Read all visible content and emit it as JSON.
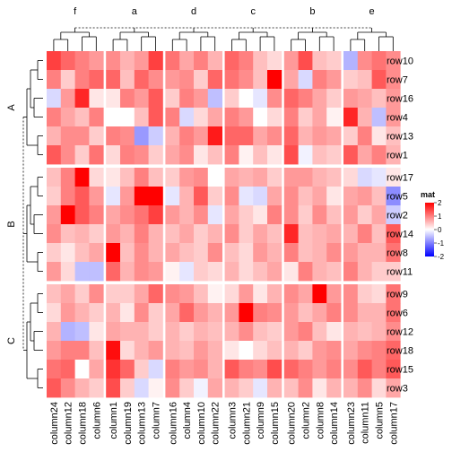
{
  "chart_data": {
    "type": "heatmap",
    "column_groups": [
      {
        "title": "f",
        "columns": [
          "column24",
          "column12",
          "column18",
          "column6"
        ]
      },
      {
        "title": "a",
        "columns": [
          "column1",
          "column19",
          "column13",
          "column7"
        ]
      },
      {
        "title": "d",
        "columns": [
          "column16",
          "column4",
          "column10",
          "column22"
        ]
      },
      {
        "title": "c",
        "columns": [
          "column3",
          "column21",
          "column9",
          "column15"
        ]
      },
      {
        "title": "b",
        "columns": [
          "column20",
          "column2",
          "column8",
          "column14"
        ]
      },
      {
        "title": "e",
        "columns": [
          "column23",
          "column11",
          "column5",
          "column17"
        ]
      }
    ],
    "row_groups": [
      {
        "title": "A",
        "rows": [
          "row10",
          "row7",
          "row16",
          "row4",
          "row13",
          "row1"
        ]
      },
      {
        "title": "B",
        "rows": [
          "row17",
          "row5",
          "row2",
          "row14",
          "row8",
          "row11"
        ]
      },
      {
        "title": "C",
        "rows": [
          "row9",
          "row6",
          "row12",
          "row18",
          "row15",
          "row3"
        ]
      }
    ],
    "values": [
      [
        1.5,
        1.2,
        1.0,
        0.8,
        0.9,
        0.6,
        0.8,
        1.5,
        1.1,
        0.7,
        1.0,
        0.6,
        1.2,
        1.0,
        0.5,
        0.3,
        0.8,
        1.4,
        0.5,
        0.4,
        -0.6,
        0.9,
        1.1,
        0.9
      ],
      [
        1.0,
        0.4,
        1.0,
        1.2,
        1.2,
        0.5,
        1.2,
        0.9,
        0.8,
        0.9,
        0.4,
        1.2,
        1.1,
        0.9,
        0.5,
        2.2,
        0.7,
        -0.3,
        1.0,
        0.8,
        0.4,
        0.5,
        1.3,
        0.9
      ],
      [
        -0.3,
        0.8,
        1.7,
        0.2,
        0.2,
        1.0,
        0.8,
        1.3,
        0.4,
        1.0,
        0.8,
        -0.5,
        0.4,
        0.0,
        -0.2,
        0.9,
        1.2,
        1.0,
        0.7,
        0.4,
        0.8,
        0.7,
        0.5,
        0.8
      ],
      [
        1.0,
        0.7,
        0.5,
        1.0,
        0.0,
        0.0,
        0.5,
        1.3,
        1.0,
        -0.3,
        0.3,
        0.7,
        1.0,
        0.8,
        0.0,
        0.3,
        1.0,
        0.4,
        0.7,
        0.1,
        1.7,
        0.6,
        -0.5,
        0.8
      ],
      [
        0.6,
        0.9,
        0.9,
        0.4,
        1.0,
        0.9,
        -0.8,
        -0.4,
        0.6,
        1.0,
        0.8,
        1.8,
        1.2,
        1.2,
        0.7,
        0.9,
        1.2,
        0.6,
        0.8,
        0.7,
        0.4,
        1.0,
        0.2,
        0.5
      ],
      [
        1.3,
        0.9,
        0.4,
        1.1,
        0.3,
        1.0,
        0.9,
        0.4,
        0.7,
        0.9,
        0.2,
        0.5,
        1.0,
        0.1,
        0.5,
        0.2,
        1.4,
        -0.1,
        0.5,
        0.4,
        1.3,
        0.7,
        1.0,
        0.6
      ],
      [
        0.5,
        1.0,
        2.2,
        0.3,
        0.2,
        0.5,
        1.0,
        0.5,
        0.4,
        0.8,
        0.9,
        0.0,
        0.7,
        0.6,
        0.7,
        0.4,
        0.8,
        0.8,
        0.6,
        0.5,
        0.3,
        -0.3,
        -0.2,
        0.2
      ],
      [
        0.4,
        1.0,
        1.3,
        0.8,
        -0.2,
        0.8,
        2.1,
        2.0,
        -0.2,
        0.6,
        1.3,
        0.4,
        0.9,
        -0.2,
        -0.3,
        0.7,
        0.9,
        0.5,
        0.7,
        0.2,
        0.7,
        0.8,
        0.5,
        -0.9
      ],
      [
        0.8,
        2.2,
        1.3,
        1.0,
        0.7,
        0.9,
        1.1,
        1.5,
        0.8,
        0.6,
        0.9,
        -0.2,
        0.7,
        0.4,
        0.2,
        1.0,
        0.9,
        0.4,
        0.9,
        0.5,
        0.8,
        0.4,
        0.7,
        -0.4
      ],
      [
        0.9,
        0.5,
        0.6,
        0.4,
        0.8,
        0.6,
        1.0,
        0.6,
        0.5,
        0.7,
        0.4,
        0.6,
        0.9,
        0.4,
        0.7,
        0.5,
        1.7,
        0.5,
        0.6,
        0.7,
        0.6,
        1.0,
        0.5,
        1.3
      ],
      [
        0.4,
        0.2,
        0.5,
        0.7,
        2.3,
        0.5,
        0.9,
        0.6,
        0.7,
        0.5,
        0.4,
        0.9,
        0.5,
        0.3,
        0.8,
        0.6,
        1.0,
        0.5,
        0.6,
        0.9,
        0.8,
        0.6,
        0.6,
        1.1
      ],
      [
        0.8,
        0.3,
        -0.5,
        -0.5,
        1.2,
        0.6,
        0.9,
        0.8,
        0.1,
        -0.2,
        0.4,
        0.3,
        0.6,
        0.3,
        0.5,
        0.7,
        0.2,
        1.0,
        0.6,
        0.5,
        1.0,
        0.6,
        0.4,
        0.4
      ],
      [
        0.5,
        0.7,
        0.4,
        0.9,
        0.4,
        0.4,
        0.7,
        1.2,
        0.9,
        0.8,
        0.5,
        0.1,
        0.3,
        0.8,
        0.2,
        0.6,
        0.9,
        0.7,
        2.0,
        0.8,
        0.9,
        0.4,
        0.3,
        1.1
      ],
      [
        0.3,
        0.8,
        0.6,
        0.4,
        0.6,
        0.2,
        0.9,
        0.4,
        0.7,
        1.2,
        0.8,
        0.6,
        0.8,
        2.0,
        1.0,
        0.9,
        0.8,
        0.5,
        0.7,
        1.0,
        0.9,
        0.6,
        0.6,
        1.1
      ],
      [
        0.6,
        -0.6,
        -0.5,
        0.2,
        0.7,
        0.6,
        0.6,
        0.4,
        0.6,
        0.4,
        0.6,
        0.5,
        0.6,
        0.9,
        0.5,
        0.4,
        0.8,
        1.0,
        0.5,
        0.2,
        0.6,
        0.5,
        0.6,
        0.9
      ],
      [
        0.8,
        1.0,
        1.0,
        0.5,
        1.9,
        0.3,
        0.6,
        0.8,
        0.6,
        0.5,
        0.8,
        0.6,
        0.2,
        0.0,
        0.3,
        0.5,
        0.6,
        0.4,
        0.8,
        0.9,
        0.7,
        0.9,
        1.0,
        1.2
      ],
      [
        1.1,
        1.2,
        0.0,
        0.7,
        1.6,
        1.2,
        0.4,
        -0.3,
        1.0,
        0.8,
        0.9,
        0.6,
        1.3,
        1.0,
        0.9,
        1.4,
        1.2,
        1.0,
        0.8,
        1.0,
        0.9,
        1.3,
        1.0,
        1.3
      ],
      [
        1.3,
        0.9,
        0.6,
        0.4,
        1.4,
        0.4,
        -0.3,
        0.1,
        0.9,
        0.4,
        -0.1,
        0.7,
        0.6,
        0.4,
        -0.2,
        0.6,
        0.5,
        0.9,
        0.2,
        0.6,
        0.6,
        0.9,
        0.3,
        0.7
      ]
    ],
    "legend": {
      "title": "mat",
      "ticks": [
        2,
        1,
        0,
        -1,
        -2
      ],
      "placement": "right"
    },
    "colors": {
      "low": "#0000ff",
      "mid": "#ffffff",
      "high": "#ff0000"
    },
    "color_range": [
      -2,
      2
    ]
  }
}
